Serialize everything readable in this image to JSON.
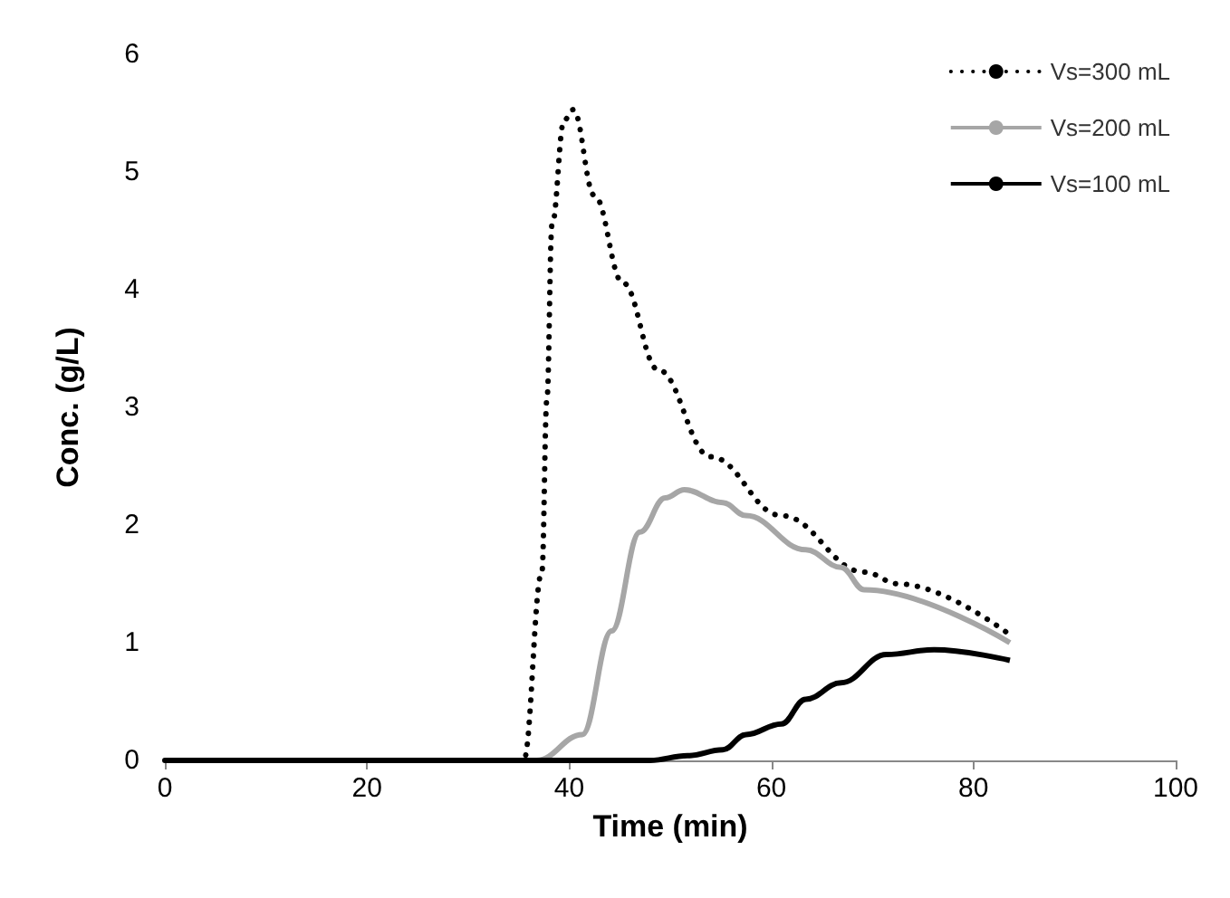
{
  "chart_data": {
    "type": "line",
    "xlabel": "Time (min)",
    "ylabel": "Conc. (g/L)",
    "xlim": [
      0,
      100
    ],
    "xticks": [
      0,
      20,
      40,
      60,
      80,
      100
    ],
    "ylim": [
      0,
      6
    ],
    "yticks": [
      0,
      1,
      2,
      3,
      4,
      5,
      6
    ],
    "grid": false,
    "legend": "top right",
    "marker": "none",
    "series": [
      {
        "name": "Vs=300 mL",
        "color": "#000000",
        "line_style": "dotted",
        "x": [
          0,
          35.5,
          37.3,
          37.8,
          38.3,
          39.5,
          40.4,
          42.5,
          45.3,
          48.8,
          54,
          61,
          69.2,
          72.6,
          83.4
        ],
        "values": [
          0,
          0,
          1.6,
          3.07,
          4.55,
          5.44,
          5.53,
          4.8,
          4.06,
          3.32,
          2.58,
          2.08,
          1.6,
          1.5,
          1.08
        ]
      },
      {
        "name": "Vs=200 mL",
        "color": "#a6a6a6",
        "line_style": "solid",
        "x": [
          0,
          36.8,
          41.3,
          44.2,
          47,
          49.5,
          51.4,
          55.2,
          57.5,
          63.4,
          66.9,
          69.2,
          83.6
        ],
        "values": [
          0,
          0,
          0.22,
          1.1,
          1.94,
          2.23,
          2.3,
          2.19,
          2.08,
          1.79,
          1.64,
          1.45,
          1.0
        ]
      },
      {
        "name": "Vs=100 mL",
        "color": "#000000",
        "line_style": "solid",
        "x": [
          0,
          48,
          51.7,
          55.2,
          57.5,
          61,
          63.4,
          66.9,
          71.4,
          76.1,
          83.6
        ],
        "values": [
          0,
          0,
          0.04,
          0.09,
          0.22,
          0.31,
          0.52,
          0.66,
          0.9,
          0.94,
          0.85
        ]
      }
    ]
  }
}
